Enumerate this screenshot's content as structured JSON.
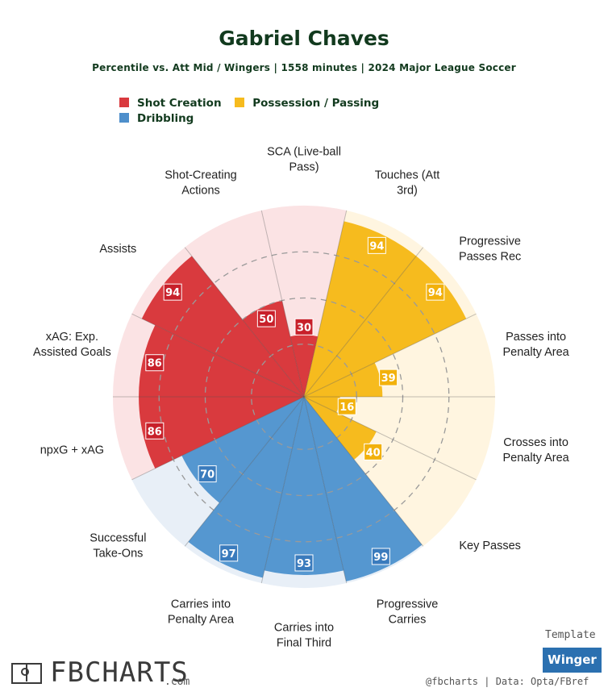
{
  "header": {
    "title": "Gabriel Chaves",
    "subtitle": "Percentile vs. Att Mid / Wingers | 1558 minutes | 2024 Major League Soccer"
  },
  "legend": {
    "items": [
      {
        "label": "Shot Creation",
        "color": "#d93a3e"
      },
      {
        "label": "Possession / Passing",
        "color": "#f6bb1e"
      },
      {
        "label": "Dribbling",
        "color": "#4e8fcb"
      }
    ]
  },
  "chart_data": {
    "type": "radar",
    "scale": [
      0,
      100
    ],
    "grid_rings": [
      25,
      50,
      75
    ],
    "categories": [
      {
        "label": "SCA (Live-ball Pass)",
        "lines": [
          "SCA (Live-ball",
          "Pass)"
        ],
        "value": 30,
        "group": "Shot Creation"
      },
      {
        "label": "Touches (Att 3rd)",
        "lines": [
          "Touches (Att",
          "3rd)"
        ],
        "value": 94,
        "group": "Possession / Passing"
      },
      {
        "label": "Progressive Passes Rec",
        "lines": [
          "Progressive",
          "Passes Rec"
        ],
        "value": 94,
        "group": "Possession / Passing"
      },
      {
        "label": "Passes into Penalty Area",
        "lines": [
          "Passes into",
          "Penalty Area"
        ],
        "value": 39,
        "group": "Possession / Passing"
      },
      {
        "label": "Crosses into Penalty Area",
        "lines": [
          "Crosses into",
          "Penalty Area"
        ],
        "value": 16,
        "group": "Possession / Passing"
      },
      {
        "label": "Key Passes",
        "lines": [
          "Key Passes"
        ],
        "value": 40,
        "group": "Possession / Passing"
      },
      {
        "label": "Progressive Carries",
        "lines": [
          "Progressive",
          "Carries"
        ],
        "value": 99,
        "group": "Dribbling"
      },
      {
        "label": "Carries into Final Third",
        "lines": [
          "Carries into",
          "Final Third"
        ],
        "value": 93,
        "group": "Dribbling"
      },
      {
        "label": "Carries into Penalty Area",
        "lines": [
          "Carries into",
          "Penalty Area"
        ],
        "value": 97,
        "group": "Dribbling"
      },
      {
        "label": "Successful Take-Ons",
        "lines": [
          "Successful",
          "Take-Ons"
        ],
        "value": 70,
        "group": "Dribbling"
      },
      {
        "label": "npxG + xAG",
        "lines": [
          "npxG + xAG"
        ],
        "value": 86,
        "group": "Shot Creation"
      },
      {
        "label": "xAG: Exp. Assisted Goals",
        "lines": [
          "xAG: Exp.",
          "Assisted Goals"
        ],
        "value": 86,
        "group": "Shot Creation"
      },
      {
        "label": "Assists",
        "lines": [
          "Assists"
        ],
        "value": 94,
        "group": "Shot Creation"
      },
      {
        "label": "Shot-Creating Actions",
        "lines": [
          "Shot-Creating",
          "Actions"
        ],
        "value": 50,
        "group": "Shot Creation"
      }
    ],
    "group_colors": {
      "Shot Creation": {
        "fill": "#d93a3e",
        "light": "#fbe3e4",
        "badge": "#c8202a"
      },
      "Possession / Passing": {
        "fill": "#f6bb1e",
        "light": "#fff5e0",
        "badge": "#f2b10c"
      },
      "Dribbling": {
        "fill": "#5597d0",
        "light": "#e8eff7",
        "badge": "#3a7bbd"
      }
    }
  },
  "footer": {
    "logo_text": "FBCHARTS",
    "logo_suffix": ".com",
    "template_label": "Template",
    "template_value": "Winger",
    "credit": "@fbcharts | Data: Opta/FBref"
  }
}
